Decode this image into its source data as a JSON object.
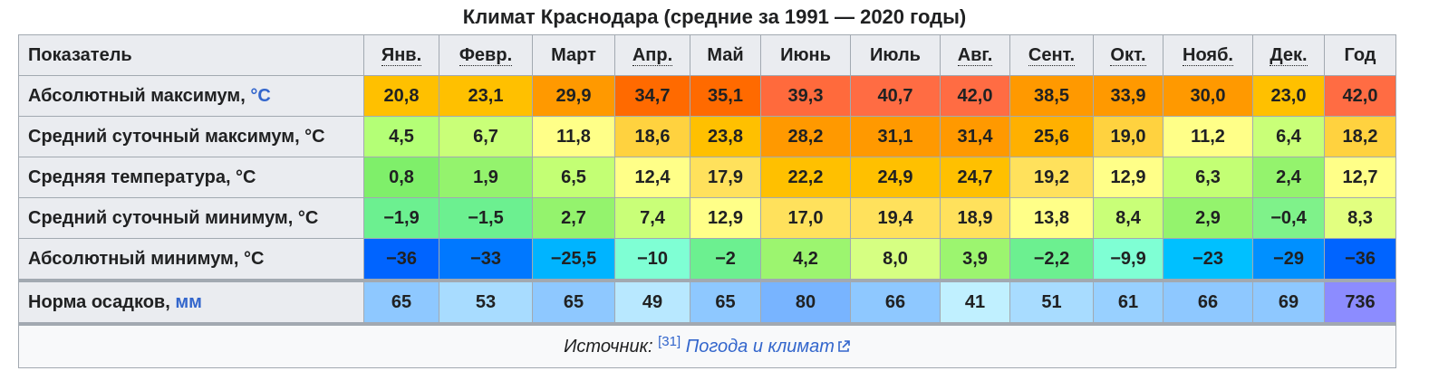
{
  "caption": "Климат Краснодара (средние за 1991 — 2020 годы)",
  "header": {
    "indicator": "Показатель",
    "months": [
      "Янв.",
      "Февр.",
      "Март",
      "Апр.",
      "Май",
      "Июнь",
      "Июль",
      "Авг.",
      "Сент.",
      "Окт.",
      "Нояб.",
      "Дек."
    ],
    "year": "Год"
  },
  "rows": [
    {
      "label": "Абсолютный максимум, ",
      "unit": "°C",
      "unit_link": true,
      "values": [
        "20,8",
        "23,1",
        "29,9",
        "34,7",
        "35,1",
        "39,3",
        "40,7",
        "42,0",
        "38,5",
        "33,9",
        "30,0",
        "23,0"
      ],
      "year": "42,0",
      "colors": [
        "#ffc000",
        "#ffc000",
        "#ff9900",
        "#ff6a00",
        "#ff6a00",
        "#ff6a3c",
        "#ff6c43",
        "#ff6c43",
        "#ff9900",
        "#ff9900",
        "#ff9900",
        "#ffc000"
      ],
      "year_color": "#ff6c43"
    },
    {
      "label": "Средний суточный максимум, °C",
      "unit": "",
      "unit_link": false,
      "values": [
        "4,5",
        "6,7",
        "11,8",
        "18,6",
        "23,8",
        "28,2",
        "31,1",
        "31,4",
        "25,6",
        "19,0",
        "11,2",
        "6,4"
      ],
      "year": "18,2",
      "colors": [
        "#b4ff76",
        "#c9ff78",
        "#ffff88",
        "#ffd23f",
        "#ffc000",
        "#ff9900",
        "#ff9900",
        "#ff9900",
        "#ffb000",
        "#ffd23f",
        "#ffff88",
        "#c9ff78"
      ],
      "year_color": "#ffd23f"
    },
    {
      "label": "Средняя температура, °C",
      "unit": "",
      "unit_link": false,
      "values": [
        "0,8",
        "1,9",
        "6,5",
        "12,4",
        "17,9",
        "22,2",
        "24,9",
        "24,7",
        "19,2",
        "12,9",
        "6,3",
        "2,4"
      ],
      "year": "12,7",
      "colors": [
        "#7fef6a",
        "#94f36d",
        "#c3ff74",
        "#ffff88",
        "#ffe15c",
        "#ffc000",
        "#ffc000",
        "#ffc000",
        "#ffe15c",
        "#ffff88",
        "#c3ff74",
        "#94f36d"
      ],
      "year_color": "#ffff88"
    },
    {
      "label": "Средний суточный минимум, °C",
      "unit": "",
      "unit_link": false,
      "values": [
        "−1,9",
        "−1,5",
        "2,7",
        "7,4",
        "12,9",
        "17,0",
        "19,4",
        "18,9",
        "13,8",
        "8,4",
        "2,9",
        "−0,4"
      ],
      "year": "8,3",
      "colors": [
        "#6cf090",
        "#6cf090",
        "#94f36d",
        "#c9ff78",
        "#ffff88",
        "#ffe15c",
        "#ffe15c",
        "#ffe15c",
        "#ffff88",
        "#c9ff78",
        "#94f36d",
        "#7ff28a"
      ],
      "year_color": "#e2ff80"
    },
    {
      "label": "Абсолютный минимум, °C",
      "unit": "",
      "unit_link": false,
      "values": [
        "−36",
        "−33",
        "−25,5",
        "−10",
        "−2",
        "4,2",
        "8,0",
        "3,9",
        "−2,2",
        "−9,9",
        "−23",
        "−29"
      ],
      "year": "−36",
      "colors": [
        "#0064ff",
        "#0078ff",
        "#00b4ff",
        "#7fffd4",
        "#6cf090",
        "#9cf56f",
        "#d6ff82",
        "#9cf56f",
        "#6cf090",
        "#7fffd4",
        "#00c0ff",
        "#0090ff"
      ],
      "year_color": "#0064ff"
    },
    {
      "label": "Норма осадков, ",
      "unit": "мм",
      "unit_link": true,
      "values": [
        "65",
        "53",
        "65",
        "49",
        "65",
        "80",
        "66",
        "41",
        "51",
        "61",
        "66",
        "69"
      ],
      "year": "736",
      "colors": [
        "#8ec8ff",
        "#a8dcff",
        "#8ec8ff",
        "#b8e8ff",
        "#8ec8ff",
        "#78b4ff",
        "#8ec8ff",
        "#c0f0ff",
        "#a8dcff",
        "#98d0ff",
        "#8ec8ff",
        "#8ec8ff"
      ],
      "year_color": "#8c8cff"
    }
  ],
  "source": {
    "prefix": "Источник: ",
    "ref": "[31]",
    "link": "Погода и климат"
  }
}
